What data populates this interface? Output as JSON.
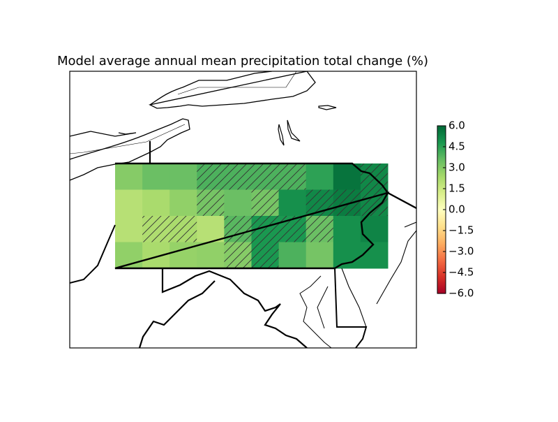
{
  "chart_data": {
    "type": "heatmap",
    "title": "Model average annual mean precipitation total change (%)",
    "colormap": "RdYlGn",
    "clim": [
      -6,
      6
    ],
    "cticks": [
      {
        "value": -6,
        "label": "−6.0"
      },
      {
        "value": -4.5,
        "label": "−4.5"
      },
      {
        "value": -3,
        "label": "−3.0"
      },
      {
        "value": -1.5,
        "label": "−1.5"
      },
      {
        "value": 0,
        "label": "0.0"
      },
      {
        "value": 1.5,
        "label": "1.5"
      },
      {
        "value": 3,
        "label": "3.0"
      },
      {
        "value": 4.5,
        "label": "4.5"
      },
      {
        "value": 6,
        "label": "6.0"
      }
    ],
    "values": [
      [
        3.0,
        3.5,
        3.5,
        4.0,
        4.0,
        4.0,
        4.0,
        4.5,
        5.7,
        5.2
      ],
      [
        2.0,
        2.3,
        2.8,
        3.3,
        3.5,
        3.3,
        5.0,
        5.2,
        5.5,
        5.2
      ],
      [
        2.0,
        2.2,
        2.3,
        2.0,
        3.8,
        4.8,
        4.8,
        3.5,
        5.0,
        5.3
      ],
      [
        2.8,
        2.3,
        2.7,
        2.8,
        3.0,
        4.8,
        4.0,
        3.3,
        5.0,
        5.0
      ]
    ],
    "hatched": [
      [
        false,
        false,
        false,
        true,
        true,
        true,
        true,
        false,
        false,
        true
      ],
      [
        false,
        false,
        false,
        true,
        false,
        true,
        false,
        true,
        true,
        true
      ],
      [
        false,
        true,
        true,
        false,
        true,
        true,
        true,
        true,
        false,
        false
      ],
      [
        false,
        false,
        false,
        false,
        true,
        true,
        false,
        false,
        false,
        false
      ]
    ]
  }
}
